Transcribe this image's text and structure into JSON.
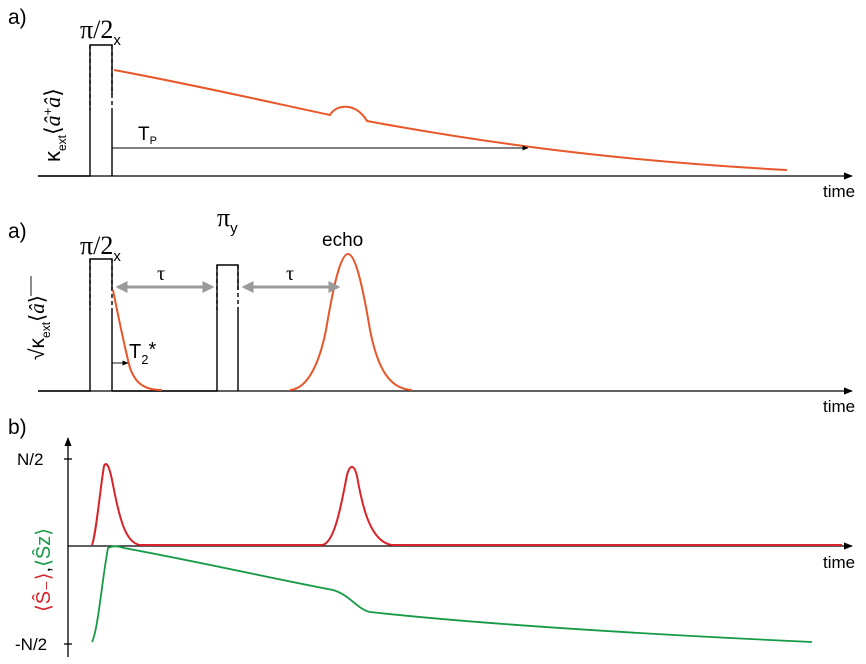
{
  "panels": {
    "top": {
      "letter": "a)",
      "pulse": {
        "main": "π/2",
        "sub": "x"
      },
      "ylabel": {
        "kappa": "κ",
        "sub": "ext",
        "bracket_l": "⟨",
        "expr": "â",
        "dagger": "+",
        "expr2": "â",
        "bracket_r": "⟩"
      },
      "tp": {
        "main": "T",
        "sub": "P"
      },
      "time_label": "time"
    },
    "middle": {
      "letter": "a)",
      "pulse1": {
        "main": "π/2",
        "sub": "x"
      },
      "pulse2": {
        "main": "π",
        "sub": "y"
      },
      "tau1": "τ",
      "tau2": "τ",
      "echo": "echo",
      "t2": {
        "main": "T",
        "sub": "2",
        "sup": "*"
      },
      "ylabel": {
        "root": "√",
        "kappa": "κ",
        "sub": "ext",
        "bracket_l": "⟨",
        "expr": "â",
        "bracket_r": "⟩"
      },
      "time_label": "time"
    },
    "bottom": {
      "letter": "b)",
      "ytick_top": "N/2",
      "ytick_bottom": "-N/2",
      "ylabel": {
        "s_minus": "⟨Ŝ₋⟩",
        "comma": ",",
        "s_z": "⟨Ŝz⟩"
      },
      "time_label": "time"
    }
  },
  "colors": {
    "orange": "#e8572a",
    "red": "#d8232a",
    "green": "#169a45",
    "gray": "#9a9a9a"
  }
}
